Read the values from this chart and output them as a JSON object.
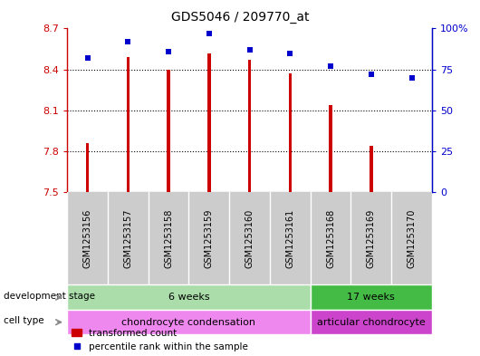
{
  "title": "GDS5046 / 209770_at",
  "samples": [
    "GSM1253156",
    "GSM1253157",
    "GSM1253158",
    "GSM1253159",
    "GSM1253160",
    "GSM1253161",
    "GSM1253168",
    "GSM1253169",
    "GSM1253170"
  ],
  "bar_values": [
    7.86,
    8.49,
    8.4,
    8.52,
    8.47,
    8.37,
    8.14,
    7.84,
    7.5
  ],
  "percentile_values": [
    82,
    92,
    86,
    97,
    87,
    85,
    77,
    72,
    70
  ],
  "ylim": [
    7.5,
    8.7
  ],
  "yticks": [
    7.5,
    7.8,
    8.1,
    8.4,
    8.7
  ],
  "bar_color": "#cc0000",
  "dot_color": "#0000cc",
  "bar_bottom": 7.5,
  "right_ylim": [
    0,
    100
  ],
  "right_yticks": [
    0,
    25,
    50,
    75,
    100
  ],
  "right_yticklabels": [
    "0",
    "25",
    "50",
    "75",
    "100%"
  ],
  "dev_stage_groups": [
    {
      "label": "6 weeks",
      "start": 0,
      "end": 5,
      "color": "#aaddaa"
    },
    {
      "label": "17 weeks",
      "start": 6,
      "end": 8,
      "color": "#44bb44"
    }
  ],
  "cell_type_groups": [
    {
      "label": "chondrocyte condensation",
      "start": 0,
      "end": 5,
      "color": "#ee88ee"
    },
    {
      "label": "articular chondrocyte",
      "start": 6,
      "end": 8,
      "color": "#cc44cc"
    }
  ],
  "dev_stage_label": "development stage",
  "cell_type_label": "cell type",
  "legend_bar_label": "transformed count",
  "legend_dot_label": "percentile rank within the sample",
  "background_color": "#ffffff",
  "plot_bg_color": "#ffffff",
  "tick_label_bg": "#cccccc",
  "left_axis_color": "#cc0000",
  "right_axis_color": "#0000cc",
  "bar_width": 0.08
}
